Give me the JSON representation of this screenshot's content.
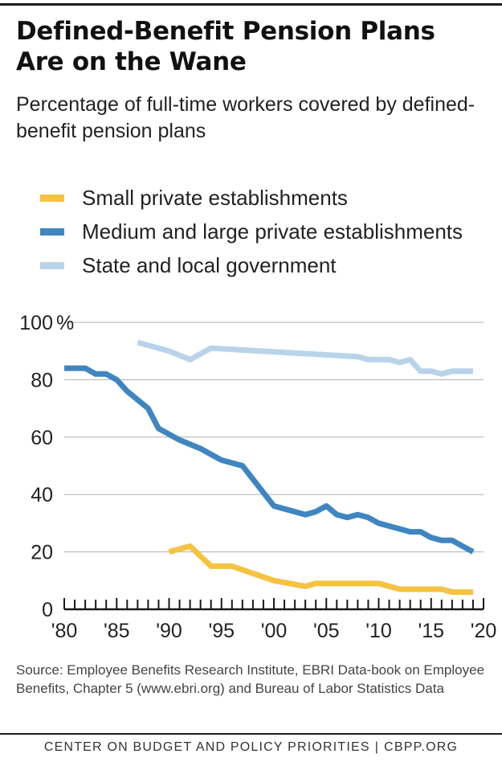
{
  "title": "Defined-Benefit Pension Plans Are on the Wane",
  "subtitle": "Percentage of full-time workers covered by defined-benefit pension plans",
  "legend": [
    {
      "label": "Small private establishments",
      "color": "#f5c242"
    },
    {
      "label": "Medium and large private establishments",
      "color": "#3f86c1"
    },
    {
      "label": "State and local government",
      "color": "#b9d4ea"
    }
  ],
  "source": "Source: Employee Benefits Research Institute, EBRI Data-book on Employee Benefits, Chapter 5 (www.ebri.org) and Bureau of Labor Statistics Data",
  "footer": {
    "org": "CENTER ON BUDGET AND POLICY PRIORITIES",
    "separator": "|",
    "site": "CBPP.ORG"
  },
  "chart_data": {
    "type": "line",
    "title": "Defined-Benefit Pension Plans Are on the Wane",
    "xlabel": "",
    "ylabel": "Percentage of full-time workers covered by defined-benefit pension plans",
    "xlim": [
      1980,
      2020
    ],
    "ylim": [
      0,
      100
    ],
    "grid": true,
    "y_ticks": [
      0,
      20,
      40,
      60,
      80,
      100
    ],
    "y_tick_labels": [
      "0",
      "20",
      "40",
      "60",
      "80",
      "100"
    ],
    "y_unit_label": "%",
    "x_ticks": [
      1980,
      1985,
      1990,
      1995,
      2000,
      2005,
      2010,
      2015,
      2020
    ],
    "x_tick_labels": [
      "'80",
      "'85",
      "'90",
      "'95",
      "'00",
      "'05",
      "'10",
      "'15",
      "'20"
    ],
    "series": [
      {
        "name": "Small private establishments",
        "color": "#f5c242",
        "x": [
          1990,
          1992,
          1994,
          1996,
          2000,
          2003,
          2004,
          2010,
          2011,
          2012,
          2016,
          2017,
          2018,
          2019
        ],
        "values": [
          20,
          22,
          15,
          15,
          10,
          8,
          9,
          9,
          8,
          7,
          7,
          6,
          6,
          6
        ]
      },
      {
        "name": "Medium and large private establishments",
        "color": "#3f86c1",
        "x": [
          1980,
          1981,
          1982,
          1983,
          1984,
          1985,
          1986,
          1988,
          1989,
          1991,
          1993,
          1995,
          1997,
          2000,
          2003,
          2004,
          2005,
          2006,
          2007,
          2008,
          2009,
          2010,
          2011,
          2012,
          2013,
          2014,
          2015,
          2016,
          2017,
          2018,
          2019
        ],
        "values": [
          84,
          84,
          84,
          82,
          82,
          80,
          76,
          70,
          63,
          59,
          56,
          52,
          50,
          36,
          33,
          34,
          36,
          33,
          32,
          33,
          32,
          30,
          29,
          28,
          27,
          27,
          25,
          24,
          24,
          22,
          20
        ]
      },
      {
        "name": "State and local government",
        "color": "#b9d4ea",
        "x": [
          1987,
          1990,
          1992,
          1994,
          2008,
          2009,
          2011,
          2012,
          2013,
          2014,
          2015,
          2016,
          2017,
          2019
        ],
        "values": [
          93,
          90,
          87,
          91,
          88,
          87,
          87,
          86,
          87,
          83,
          83,
          82,
          83,
          83
        ]
      }
    ]
  }
}
